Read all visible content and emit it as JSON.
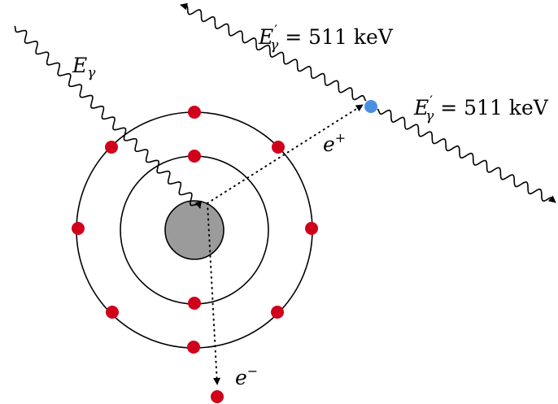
{
  "labels": {
    "incident_symbol": "E",
    "incident_subscript": "γ",
    "gamma_out_symbol": "E",
    "gamma_out_prime": "′",
    "gamma_out_subscript": "γ",
    "gamma_out_1_value": " = 511 keV",
    "gamma_out_2_value": " = 511 keV",
    "positron_symbol": "e",
    "positron_charge": "+",
    "electron_symbol": "e",
    "electron_charge": "−"
  },
  "colors": {
    "electron": "#d0021b",
    "positron": "#4a90e2",
    "nucleus_fill": "#9b9b9b",
    "nucleus_stroke": "#000000",
    "line": "#000000"
  }
}
